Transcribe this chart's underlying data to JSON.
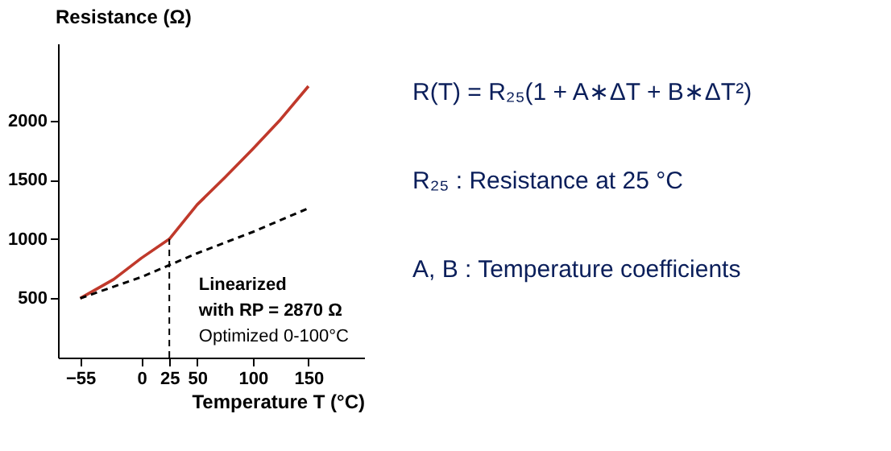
{
  "chart_data": {
    "type": "line",
    "xlabel": "Temperature T (°C)",
    "ylabel": "Resistance (Ω)",
    "xlim": [
      -75,
      200
    ],
    "ylim": [
      0,
      2650
    ],
    "xticks": [
      -55,
      0,
      25,
      50,
      100,
      150
    ],
    "yticks": [
      500,
      1000,
      1500,
      2000
    ],
    "grid": false,
    "series": [
      {
        "type": "line",
        "color": "#c0392b",
        "line_style": "solid",
        "x": [
          -55,
          -25,
          0,
          25,
          50,
          75,
          100,
          125,
          150
        ],
        "values": [
          500,
          660,
          840,
          1000,
          1290,
          1520,
          1760,
          2010,
          2290
        ]
      },
      {
        "type": "line",
        "color": "#000000",
        "line_style": "dashed",
        "x": [
          -55,
          0,
          25,
          50,
          100,
          150
        ],
        "values": [
          500,
          680,
          780,
          880,
          1060,
          1260
        ]
      }
    ],
    "ref_lines": [
      {
        "axis": "x",
        "value": 25,
        "line_style": "dashed",
        "color": "#000000"
      }
    ],
    "annotations": [
      "Linearized",
      "with RP = 2870 Ω",
      "Optimized 0-100°C",
      "R(T) = R₂₅(1 + A∗ΔT + B∗ΔT²)",
      "R₂₅  : Resistance at 25 °C",
      "A, B : Temperature coefficients"
    ]
  }
}
